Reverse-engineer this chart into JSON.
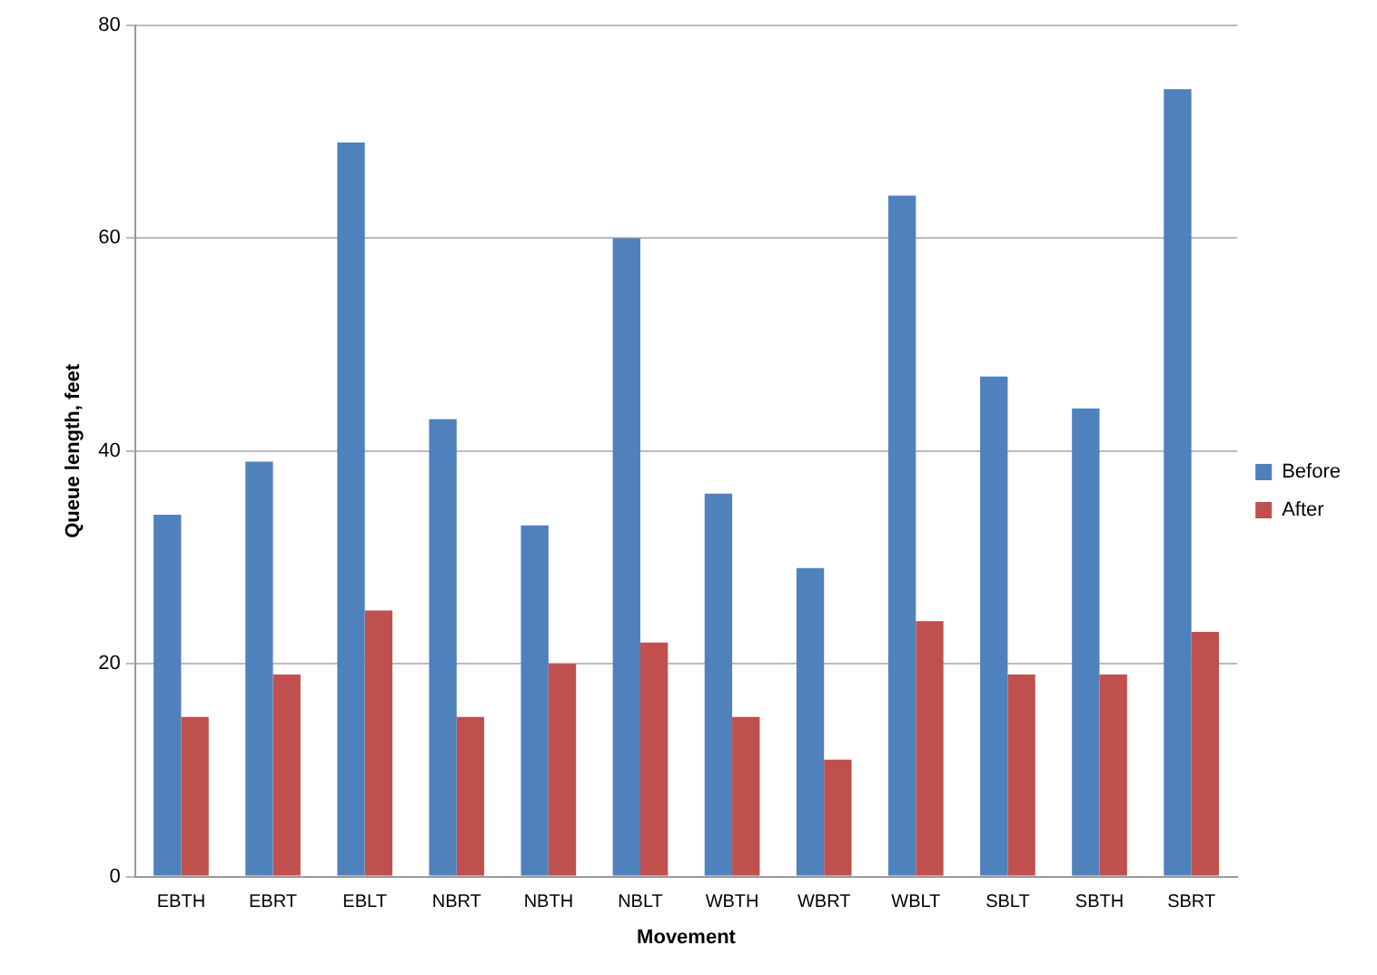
{
  "chart_data": {
    "type": "bar",
    "xlabel": "Movement",
    "ylabel": "Queue length, feet",
    "categories": [
      "EBTH",
      "EBRT",
      "EBLT",
      "NBRT",
      "NBTH",
      "NBLT",
      "WBTH",
      "WBRT",
      "WBLT",
      "SBLT",
      "SBTH",
      "SBRT"
    ],
    "series": [
      {
        "name": "Before",
        "color": "#4f81bd",
        "values": [
          34,
          39,
          69,
          43,
          33,
          60,
          36,
          29,
          64,
          47,
          44,
          74
        ]
      },
      {
        "name": "After",
        "color": "#c0504d",
        "values": [
          15,
          19,
          25,
          15,
          20,
          22,
          15,
          11,
          24,
          19,
          19,
          23
        ]
      }
    ],
    "ylim": [
      0,
      80
    ],
    "yticks": [
      0,
      20,
      40,
      60,
      80
    ],
    "grid": "y",
    "legend": "right"
  }
}
